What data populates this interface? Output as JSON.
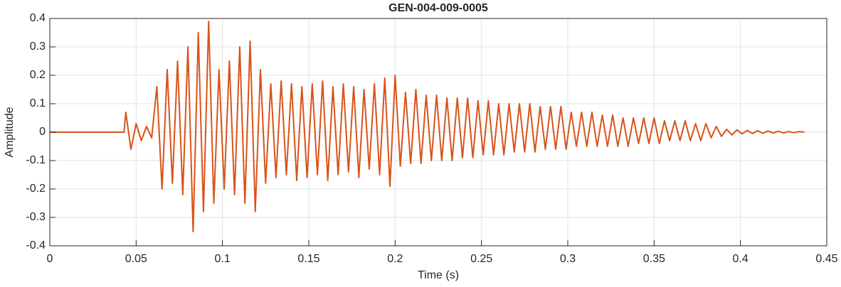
{
  "chart_data": {
    "type": "line",
    "title": "GEN-004-009-0005",
    "x_label": "Time (s)",
    "y_label": "Amplitude",
    "xlim": [
      0,
      0.45
    ],
    "ylim": [
      -0.4,
      0.4
    ],
    "xticks": [
      0,
      0.05,
      0.1,
      0.15,
      0.2,
      0.25,
      0.3,
      0.35,
      0.4,
      0.45
    ],
    "yticks": [
      -0.4,
      -0.3,
      -0.2,
      -0.1,
      0,
      0.1,
      0.2,
      0.3,
      0.4
    ],
    "grid": true,
    "x": [
      0,
      0.02,
      0.043,
      0.044,
      0.047,
      0.05,
      0.053,
      0.056,
      0.059,
      0.062,
      0.065,
      0.068,
      0.071,
      0.074,
      0.077,
      0.08,
      0.083,
      0.086,
      0.089,
      0.092,
      0.095,
      0.098,
      0.101,
      0.104,
      0.107,
      0.11,
      0.113,
      0.116,
      0.119,
      0.122,
      0.125,
      0.128,
      0.131,
      0.134,
      0.137,
      0.14,
      0.143,
      0.146,
      0.149,
      0.152,
      0.155,
      0.158,
      0.161,
      0.164,
      0.167,
      0.17,
      0.173,
      0.176,
      0.179,
      0.182,
      0.185,
      0.188,
      0.191,
      0.194,
      0.197,
      0.2,
      0.203,
      0.206,
      0.209,
      0.212,
      0.215,
      0.218,
      0.221,
      0.224,
      0.227,
      0.23,
      0.233,
      0.236,
      0.239,
      0.242,
      0.245,
      0.248,
      0.251,
      0.254,
      0.257,
      0.26,
      0.263,
      0.266,
      0.269,
      0.272,
      0.275,
      0.278,
      0.281,
      0.284,
      0.287,
      0.29,
      0.293,
      0.296,
      0.299,
      0.302,
      0.305,
      0.308,
      0.311,
      0.314,
      0.317,
      0.32,
      0.323,
      0.326,
      0.329,
      0.332,
      0.335,
      0.338,
      0.341,
      0.344,
      0.347,
      0.35,
      0.353,
      0.356,
      0.359,
      0.362,
      0.365,
      0.368,
      0.371,
      0.374,
      0.377,
      0.38,
      0.383,
      0.386,
      0.389,
      0.392,
      0.395,
      0.398,
      0.401,
      0.404,
      0.407,
      0.41,
      0.413,
      0.416,
      0.419,
      0.422,
      0.425,
      0.428,
      0.431,
      0.434,
      0.437
    ],
    "series": [
      {
        "name": "Amplitude",
        "color": "#d95319",
        "values": [
          0,
          0,
          0,
          0.07,
          -0.06,
          0.03,
          -0.03,
          0.02,
          -0.02,
          0.16,
          -0.2,
          0.22,
          -0.18,
          0.25,
          -0.22,
          0.3,
          -0.35,
          0.35,
          -0.28,
          0.39,
          -0.25,
          0.22,
          -0.2,
          0.25,
          -0.22,
          0.3,
          -0.25,
          0.32,
          -0.28,
          0.22,
          -0.18,
          0.17,
          -0.16,
          0.18,
          -0.15,
          0.17,
          -0.17,
          0.16,
          -0.16,
          0.17,
          -0.15,
          0.18,
          -0.17,
          0.16,
          -0.15,
          0.17,
          -0.14,
          0.16,
          -0.16,
          0.15,
          -0.13,
          0.17,
          -0.15,
          0.19,
          -0.19,
          0.2,
          -0.12,
          0.14,
          -0.11,
          0.15,
          -0.11,
          0.13,
          -0.1,
          0.13,
          -0.1,
          0.12,
          -0.1,
          0.12,
          -0.09,
          0.12,
          -0.09,
          0.11,
          -0.08,
          0.11,
          -0.08,
          0.1,
          -0.08,
          0.1,
          -0.07,
          0.1,
          -0.07,
          0.1,
          -0.07,
          0.09,
          -0.06,
          0.09,
          -0.06,
          0.09,
          -0.06,
          0.07,
          -0.05,
          0.07,
          -0.05,
          0.07,
          -0.05,
          0.06,
          -0.05,
          0.06,
          -0.05,
          0.05,
          -0.05,
          0.05,
          -0.04,
          0.05,
          -0.04,
          0.05,
          -0.04,
          0.04,
          -0.03,
          0.04,
          -0.03,
          0.04,
          -0.03,
          0.03,
          -0.03,
          0.03,
          -0.02,
          0.02,
          -0.015,
          0.01,
          -0.01,
          0.008,
          -0.006,
          0.006,
          -0.005,
          0.005,
          -0.004,
          0.004,
          -0.003,
          0.003,
          -0.003,
          0.002,
          -0.002,
          0.002,
          0
        ]
      }
    ]
  }
}
